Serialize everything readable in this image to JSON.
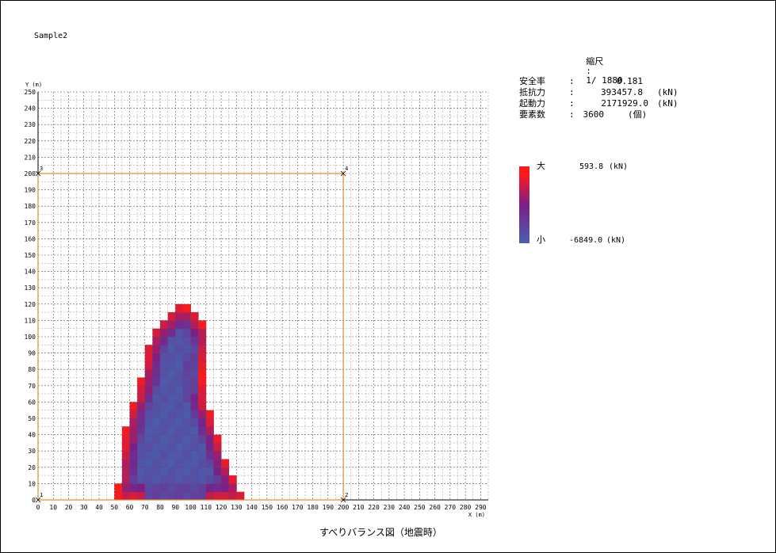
{
  "sample_name": "Sample2",
  "scale": {
    "label": "縮尺",
    "sep": ":",
    "value": "1/ 1880"
  },
  "stats": [
    {
      "label": "安全率",
      "sep": ":",
      "value": "0.181",
      "unit": ""
    },
    {
      "label": "抵抗力",
      "sep": ":",
      "value": "393457.8",
      "unit": "(kN)"
    },
    {
      "label": "起動力",
      "sep": ":",
      "value": "2171929.0",
      "unit": "(kN)"
    },
    {
      "label": "要素数",
      "sep": ":",
      "value": "3600",
      "unit": "(個)"
    }
  ],
  "legend": {
    "max_label": "大",
    "max_value": "593.8",
    "max_unit": "(kN)",
    "min_label": "小",
    "min_value": "-6849.0",
    "min_unit": "(kN)",
    "color_max": "#ff1a1a",
    "color_mid": "#7a1f8a",
    "color_min": "#4a5fb0"
  },
  "caption": "すべりバランス図（地震時）",
  "chart_data": {
    "type": "heatmap",
    "xlabel": "X (m)",
    "ylabel": "Y (m)",
    "xlim": [
      0,
      295
    ],
    "ylim": [
      0,
      250
    ],
    "x_ticks": [
      0,
      10,
      20,
      30,
      40,
      50,
      60,
      70,
      80,
      90,
      100,
      110,
      120,
      130,
      140,
      150,
      160,
      170,
      180,
      190,
      200,
      210,
      220,
      230,
      240,
      250,
      260,
      270,
      280,
      290
    ],
    "y_ticks": [
      0,
      10,
      20,
      30,
      40,
      50,
      60,
      70,
      80,
      90,
      100,
      110,
      120,
      130,
      140,
      150,
      160,
      170,
      180,
      190,
      200,
      210,
      220,
      230,
      240,
      250
    ],
    "boundary": {
      "color": "#e08a2a",
      "points": [
        {
          "label": "1",
          "x": 0,
          "y": 0
        },
        {
          "label": "2",
          "x": 200,
          "y": 0
        },
        {
          "label": "3",
          "x": 0,
          "y": 200
        },
        {
          "label": "4",
          "x": 200,
          "y": 200
        }
      ]
    },
    "cell_size": 5,
    "slide_mass_outline": [
      [
        52,
        0
      ],
      [
        137,
        0
      ],
      [
        125,
        20
      ],
      [
        118,
        40
      ],
      [
        112,
        55
      ],
      [
        110,
        60
      ],
      [
        108,
        70
      ],
      [
        108,
        85
      ],
      [
        112,
        95
      ],
      [
        110,
        105
      ],
      [
        102,
        115
      ],
      [
        95,
        120
      ],
      [
        90,
        117
      ],
      [
        85,
        112
      ],
      [
        80,
        108
      ],
      [
        75,
        102
      ],
      [
        72,
        95
      ],
      [
        70,
        85
      ],
      [
        68,
        75
      ],
      [
        65,
        65
      ],
      [
        60,
        55
      ],
      [
        58,
        45
      ],
      [
        55,
        30
      ],
      [
        53,
        15
      ]
    ],
    "core_region": [
      [
        72,
        0
      ],
      [
        112,
        0
      ],
      [
        110,
        20
      ],
      [
        108,
        40
      ],
      [
        103,
        55
      ],
      [
        98,
        62
      ],
      [
        90,
        64
      ],
      [
        80,
        64
      ],
      [
        75,
        55
      ],
      [
        72,
        40
      ],
      [
        70,
        20
      ]
    ],
    "upper_core_region": [
      [
        78,
        62
      ],
      [
        102,
        62
      ],
      [
        105,
        80
      ],
      [
        103,
        95
      ],
      [
        97,
        105
      ],
      [
        90,
        102
      ],
      [
        84,
        95
      ],
      [
        80,
        80
      ]
    ]
  }
}
